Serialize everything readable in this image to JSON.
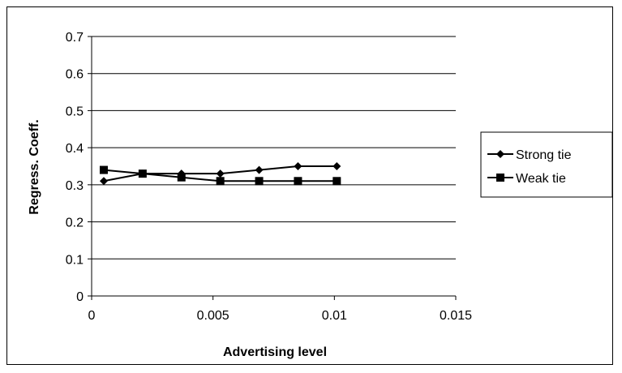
{
  "chart_data": {
    "type": "line",
    "xlabel": "Advertising level",
    "ylabel": "Regress. Coeff.",
    "xlim": [
      0,
      0.015
    ],
    "ylim": [
      0,
      0.7
    ],
    "x_ticks": [
      0,
      0.005,
      0.01,
      0.015
    ],
    "x_tick_labels": [
      "0",
      "0.005",
      "0.01",
      "0.015"
    ],
    "y_ticks": [
      0,
      0.1,
      0.2,
      0.3,
      0.4,
      0.5,
      0.6,
      0.7
    ],
    "y_tick_labels": [
      "0",
      "0.1",
      "0.2",
      "0.3",
      "0.4",
      "0.5",
      "0.6",
      "0.7"
    ],
    "grid": "horizontal",
    "legend_position": "right",
    "series": [
      {
        "name": "Strong tie",
        "marker": "diamond",
        "color": "#000000",
        "x": [
          0.0005,
          0.0021,
          0.0037,
          0.0053,
          0.0069,
          0.0085,
          0.0101
        ],
        "y": [
          0.31,
          0.33,
          0.33,
          0.33,
          0.34,
          0.35,
          0.35
        ]
      },
      {
        "name": "Weak tie",
        "marker": "square",
        "color": "#000000",
        "x": [
          0.0005,
          0.0021,
          0.0037,
          0.0053,
          0.0069,
          0.0085,
          0.0101
        ],
        "y": [
          0.34,
          0.33,
          0.32,
          0.31,
          0.31,
          0.31,
          0.31
        ]
      }
    ]
  }
}
